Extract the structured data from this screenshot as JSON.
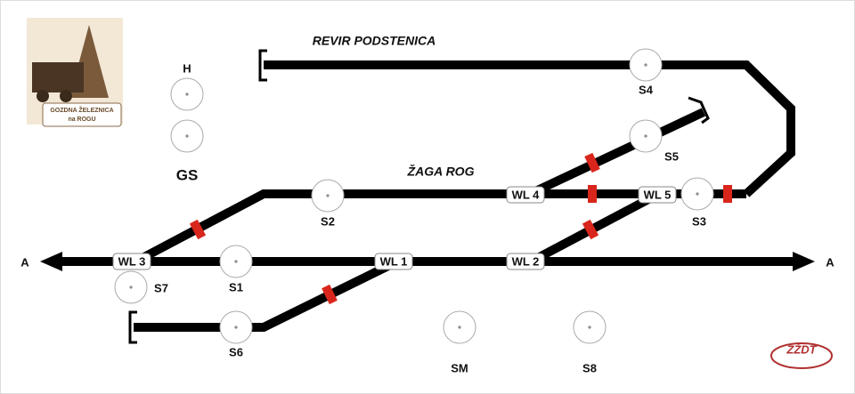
{
  "header": {
    "logo_line1": "GOZDNA ŽELEZNICA",
    "logo_line2": "na ROGU",
    "brand": "ZŽDT"
  },
  "sections": {
    "upper": "REVIR PODSTENICA",
    "middle": "ŽAGA ROG"
  },
  "panel": {
    "top_label": "H",
    "bottom_label": "GS"
  },
  "ends": {
    "left": "A",
    "right": "A"
  },
  "switches": [
    "WL 1",
    "WL 2",
    "WL 3",
    "WL 4",
    "WL 5"
  ],
  "signals": [
    "S1",
    "S2",
    "S3",
    "S4",
    "S5",
    "S6",
    "S7",
    "S8",
    "SM"
  ]
}
